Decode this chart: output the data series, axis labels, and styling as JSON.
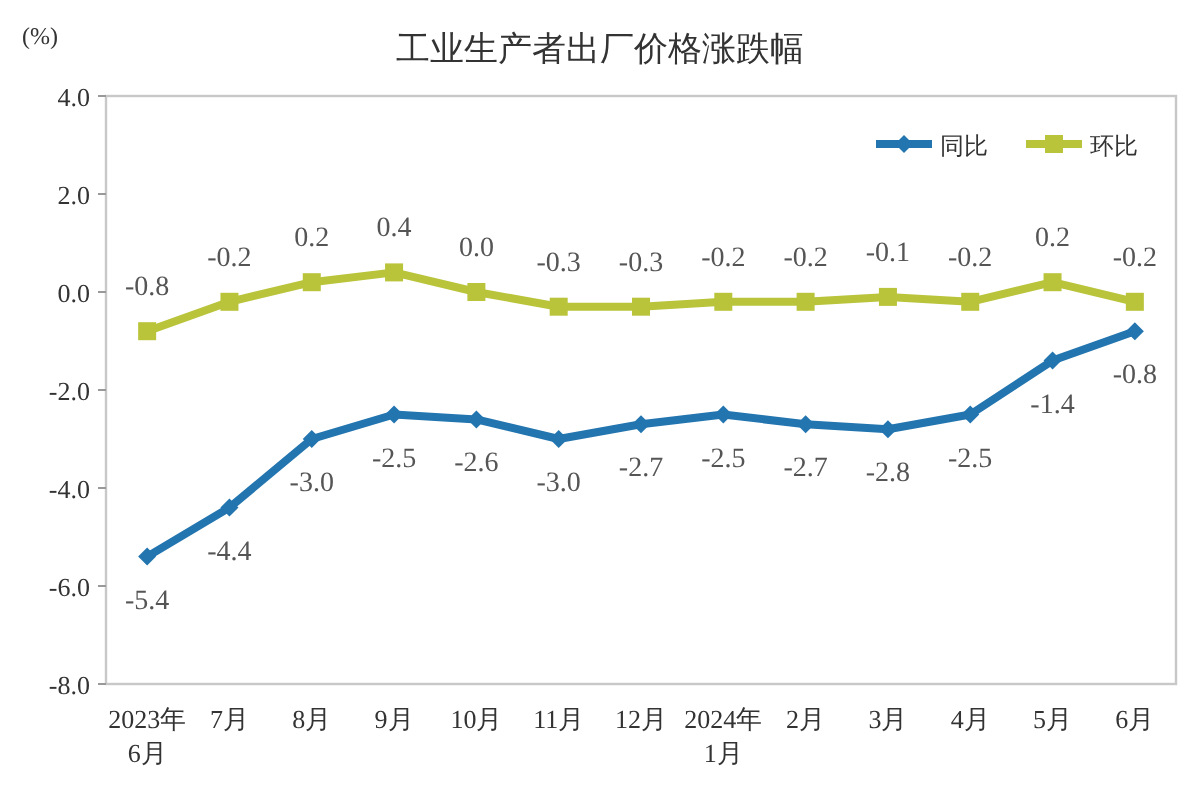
{
  "chart_data": {
    "type": "line",
    "title": "工业生产者出厂价格涨跌幅",
    "ylabel": "(%)",
    "categories": [
      "2023年\n6月",
      "7月",
      "8月",
      "9月",
      "10月",
      "11月",
      "12月",
      "2024年\n1月",
      "2月",
      "3月",
      "4月",
      "5月",
      "6月"
    ],
    "series": [
      {
        "name": "同比",
        "color": "#2375b0",
        "marker": "diamond",
        "values": [
          -5.4,
          -4.4,
          -3.0,
          -2.5,
          -2.6,
          -3.0,
          -2.7,
          -2.5,
          -2.7,
          -2.8,
          -2.5,
          -1.4,
          -0.8
        ],
        "value_labels": [
          "-5.4",
          "-4.4",
          "-3.0",
          "-2.5",
          "-2.6",
          "-3.0",
          "-2.7",
          "-2.5",
          "-2.7",
          "-2.8",
          "-2.5",
          "-1.4",
          "-0.8"
        ]
      },
      {
        "name": "环比",
        "color": "#b9c43a",
        "marker": "square",
        "values": [
          -0.8,
          -0.2,
          0.2,
          0.4,
          0.0,
          -0.3,
          -0.3,
          -0.2,
          -0.2,
          -0.1,
          -0.2,
          0.2,
          -0.2
        ],
        "value_labels": [
          "-0.8",
          "-0.2",
          "0.2",
          "0.4",
          "0.0",
          "-0.3",
          "-0.3",
          "-0.2",
          "-0.2",
          "-0.1",
          "-0.2",
          "0.2",
          "-0.2"
        ]
      }
    ],
    "ylim": [
      -8,
      4
    ],
    "yticks": [
      {
        "value": -8,
        "label": "-8.0"
      },
      {
        "value": -6,
        "label": "-6.0"
      },
      {
        "value": -4,
        "label": "-4.0"
      },
      {
        "value": -2,
        "label": "-2.0"
      },
      {
        "value": 0,
        "label": "0.0"
      },
      {
        "value": 2,
        "label": "2.0"
      },
      {
        "value": 4,
        "label": "4.0"
      }
    ],
    "grid": false,
    "legend": "top right",
    "line_style": "solid"
  }
}
